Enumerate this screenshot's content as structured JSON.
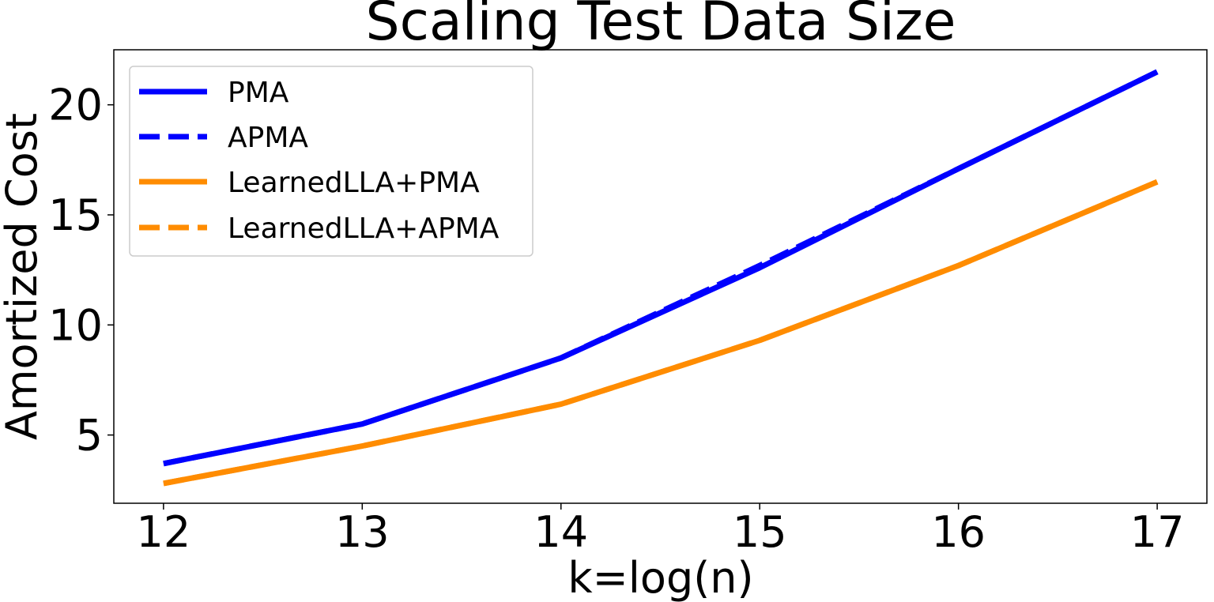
{
  "chart_data": {
    "type": "line",
    "title": "Scaling Test Data Size",
    "xlabel": "k=log(n)",
    "ylabel": "Amortized Cost",
    "x": [
      12,
      13,
      14,
      15,
      16,
      17
    ],
    "xlim": [
      11.75,
      17.25
    ],
    "ylim": [
      1.9,
      22.5
    ],
    "xticks": [
      12,
      13,
      14,
      15,
      16,
      17
    ],
    "yticks": [
      5,
      10,
      15,
      20
    ],
    "grid": false,
    "legend_position": "top-left",
    "series": [
      {
        "name": "PMA",
        "values": [
          3.7,
          5.5,
          8.5,
          12.6,
          17.1,
          21.5
        ],
        "color": "#0000ff",
        "dash": "solid"
      },
      {
        "name": "APMA",
        "values": [
          3.7,
          5.5,
          8.5,
          12.7,
          17.1,
          21.5
        ],
        "color": "#0000ff",
        "dash": "dashed"
      },
      {
        "name": "LearnedLLA+PMA",
        "values": [
          2.8,
          4.5,
          6.4,
          9.3,
          12.7,
          16.5
        ],
        "color": "#ff8c00",
        "dash": "solid"
      },
      {
        "name": "LearnedLLA+APMA",
        "values": [
          2.8,
          4.5,
          6.4,
          9.3,
          12.7,
          16.5
        ],
        "color": "#ff8c00",
        "dash": "dashed"
      }
    ]
  }
}
